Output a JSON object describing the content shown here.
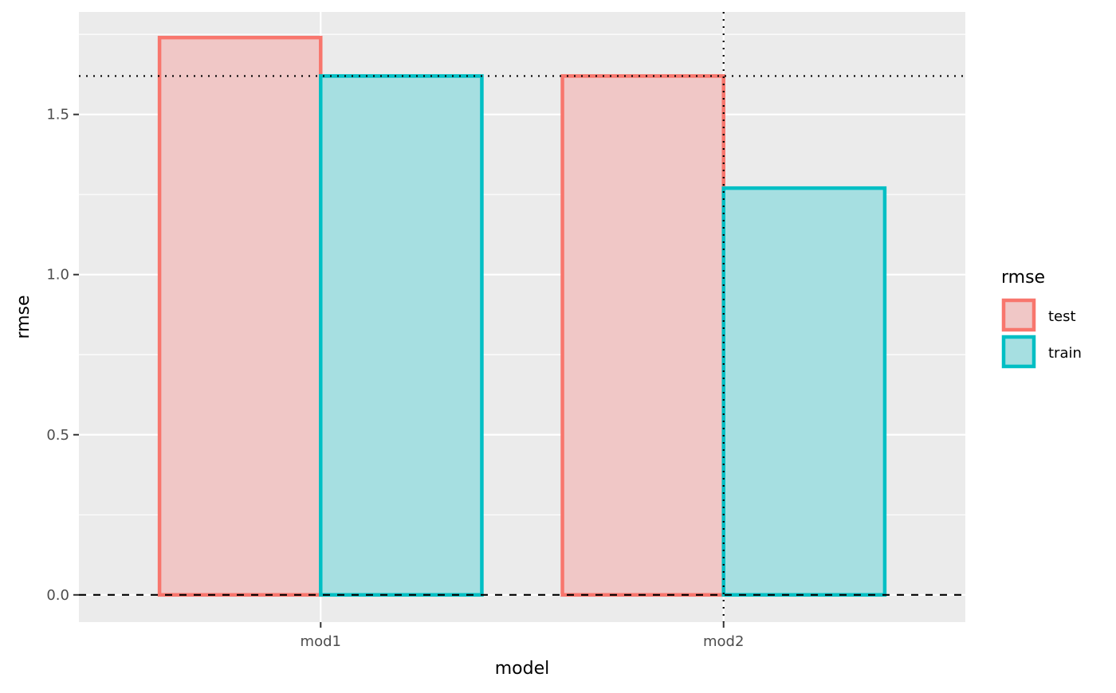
{
  "chart_data": {
    "type": "bar",
    "title": "",
    "xlabel": "model",
    "ylabel": "rmse",
    "categories": [
      "mod1",
      "mod2"
    ],
    "series": [
      {
        "name": "test",
        "values": [
          1.74,
          1.62
        ],
        "color": "#F8766D",
        "fill": "#F0C7C6"
      },
      {
        "name": "train",
        "values": [
          1.62,
          1.27
        ],
        "color": "#00BFC4",
        "fill": "#A6DFE1"
      }
    ],
    "ylim": [
      -0.085,
      1.82
    ],
    "yticks": [
      0.0,
      0.5,
      1.0,
      1.5
    ],
    "ytick_labels": [
      "0.0",
      "0.5",
      "1.0",
      "1.5"
    ],
    "hline_dotted": 1.62,
    "hline_dashed": 0.0,
    "vline_dotted_category": "mod2",
    "grid": true,
    "legend": {
      "title": "rmse",
      "placement": "right",
      "items": [
        "test",
        "train"
      ]
    },
    "panel_background": "#EBEBEB"
  }
}
